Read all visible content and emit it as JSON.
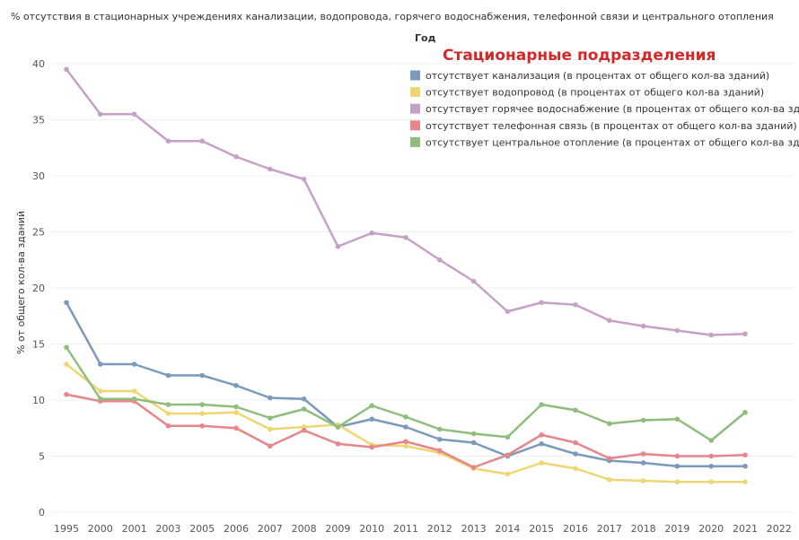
{
  "chart_data": {
    "type": "line",
    "title": "% отсутствия в стационарных учреждениях канализации, водопровода, горячего водоснабжения, телефонной связи и центрального отопления",
    "ylabel": "% от общего кол-ва зданий",
    "xlabel": "",
    "ylim": [
      0,
      40
    ],
    "yticks": [
      0,
      5,
      10,
      15,
      20,
      25,
      30,
      35,
      40
    ],
    "grid": "horizontal",
    "legend": {
      "placement": "top-right",
      "header": "Год",
      "title": "Стационарные подразделения"
    },
    "categories": [
      "1995",
      "2000",
      "2001",
      "2003",
      "2005",
      "2006",
      "2007",
      "2008",
      "2009",
      "2010",
      "2011",
      "2012",
      "2013",
      "2014",
      "2015",
      "2016",
      "2017",
      "2018",
      "2019",
      "2020",
      "2021",
      "2022"
    ],
    "series": [
      {
        "name": "отсутствует канализация (в процентах от общего кол-ва зданий)",
        "color": "#7a99bb",
        "values": [
          18.7,
          13.2,
          13.2,
          12.2,
          12.2,
          11.3,
          10.2,
          10.1,
          7.6,
          8.3,
          7.6,
          6.5,
          6.2,
          5.0,
          6.1,
          5.2,
          4.6,
          4.4,
          4.1,
          4.1,
          4.1,
          null
        ]
      },
      {
        "name": "отсутствует водопровод (в процентах от общего кол-ва зданий)",
        "color": "#eed672",
        "values": [
          13.2,
          10.8,
          10.8,
          8.8,
          8.8,
          8.9,
          7.4,
          7.6,
          7.8,
          6.0,
          5.9,
          5.3,
          3.9,
          3.4,
          4.4,
          3.9,
          2.9,
          2.8,
          2.7,
          2.7,
          2.7,
          null
        ]
      },
      {
        "name": "отсутствует горячее водоснабжение (в процентах от общего кол-ва зданий)",
        "color": "#c6a1c6",
        "values": [
          39.5,
          35.5,
          35.5,
          33.1,
          33.1,
          31.7,
          30.6,
          29.7,
          23.7,
          24.9,
          24.5,
          22.5,
          20.6,
          17.9,
          18.7,
          18.5,
          17.1,
          16.6,
          16.2,
          15.8,
          15.9,
          null
        ]
      },
      {
        "name": "отсутствует телефонная связь (в процентах от общего кол-ва зданий)",
        "color": "#e6858a",
        "values": [
          10.5,
          9.9,
          9.9,
          7.7,
          7.7,
          7.5,
          5.9,
          7.3,
          6.1,
          5.8,
          6.3,
          5.5,
          4.0,
          5.1,
          6.9,
          6.2,
          4.8,
          5.2,
          5.0,
          5.0,
          5.1,
          null
        ]
      },
      {
        "name": "отсутствует центральное отопление (в процентах от общего кол-ва зданий)",
        "color": "#8ebd7d",
        "values": [
          14.7,
          10.1,
          10.1,
          9.6,
          9.6,
          9.4,
          8.4,
          9.2,
          7.6,
          9.5,
          8.5,
          7.4,
          7.0,
          6.7,
          9.6,
          9.1,
          7.9,
          8.2,
          8.3,
          6.4,
          8.9,
          null
        ]
      }
    ]
  }
}
